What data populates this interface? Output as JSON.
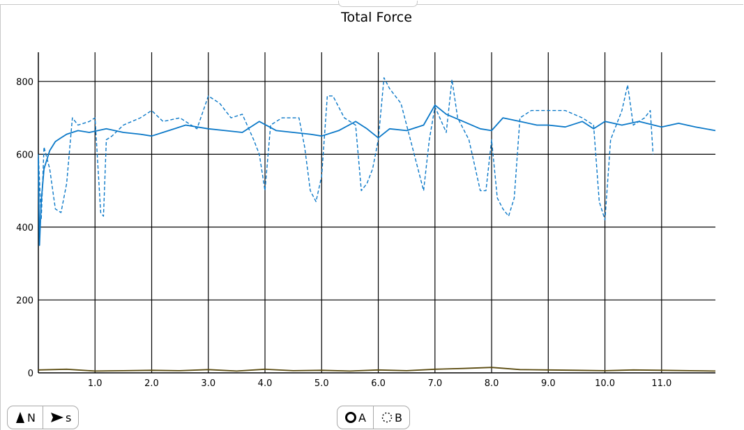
{
  "chart_data": {
    "type": "line",
    "title": "Total Force",
    "xlabel": "",
    "ylabel": "",
    "xlim": [
      0,
      11.95
    ],
    "ylim": [
      0,
      880
    ],
    "x_ticks": [
      1.0,
      2.0,
      3.0,
      4.0,
      5.0,
      6.0,
      7.0,
      8.0,
      9.0,
      10.0,
      11.0
    ],
    "x_tick_labels": [
      "1.0",
      "2.0",
      "3.0",
      "4.0",
      "5.0",
      "6.0",
      "7.0",
      "8.0",
      "9.0",
      "10.0",
      "11.0"
    ],
    "y_ticks": [
      0,
      200,
      400,
      600,
      800
    ],
    "y_tick_labels": [
      "0",
      "200",
      "400",
      "600",
      "800"
    ],
    "grid": true,
    "series": [
      {
        "color": "#0a78c8",
        "style": "solid",
        "x": [
          0,
          0.02,
          0.05,
          0.1,
          0.2,
          0.3,
          0.4,
          0.5,
          0.7,
          0.9,
          1.2,
          1.5,
          1.8,
          2.0,
          2.3,
          2.6,
          3.0,
          3.3,
          3.6,
          3.9,
          4.2,
          4.5,
          4.8,
          5.0,
          5.3,
          5.6,
          5.8,
          6.0,
          6.2,
          6.5,
          6.8,
          7.0,
          7.2,
          7.5,
          7.8,
          8.0,
          8.2,
          8.5,
          8.8,
          9.0,
          9.3,
          9.6,
          9.8,
          10.0,
          10.3,
          10.6,
          11.0,
          11.3,
          11.6,
          11.95
        ],
        "y": [
          590,
          350,
          470,
          560,
          610,
          635,
          645,
          655,
          665,
          660,
          670,
          660,
          655,
          650,
          665,
          680,
          670,
          665,
          660,
          690,
          665,
          660,
          655,
          650,
          665,
          690,
          670,
          645,
          670,
          665,
          680,
          735,
          710,
          690,
          670,
          665,
          700,
          690,
          680,
          680,
          675,
          690,
          670,
          690,
          680,
          690,
          675,
          685,
          675,
          665
        ]
      },
      {
        "color": "#0a78c8",
        "style": "dashed",
        "x": [
          0,
          0.05,
          0.1,
          0.2,
          0.3,
          0.4,
          0.5,
          0.6,
          0.7,
          0.9,
          1.0,
          1.1,
          1.15,
          1.2,
          1.3,
          1.5,
          1.8,
          2.0,
          2.2,
          2.5,
          2.8,
          3.0,
          3.2,
          3.4,
          3.6,
          3.8,
          3.9,
          4.0,
          4.1,
          4.3,
          4.6,
          4.7,
          4.8,
          4.9,
          5.0,
          5.1,
          5.2,
          5.4,
          5.6,
          5.7,
          5.8,
          5.9,
          6.0,
          6.1,
          6.2,
          6.4,
          6.6,
          6.8,
          6.9,
          7.0,
          7.2,
          7.3,
          7.4,
          7.6,
          7.8,
          7.9,
          8.0,
          8.1,
          8.2,
          8.3,
          8.4,
          8.5,
          8.7,
          9.0,
          9.3,
          9.6,
          9.8,
          9.9,
          10.0,
          10.1,
          10.3,
          10.4,
          10.5,
          10.7,
          10.8,
          10.85
        ],
        "y": [
          600,
          420,
          620,
          560,
          450,
          440,
          520,
          700,
          680,
          690,
          700,
          440,
          430,
          640,
          650,
          680,
          700,
          720,
          690,
          700,
          670,
          760,
          740,
          700,
          710,
          640,
          600,
          500,
          680,
          700,
          700,
          620,
          500,
          470,
          540,
          760,
          760,
          700,
          680,
          500,
          520,
          560,
          640,
          810,
          780,
          740,
          620,
          500,
          640,
          730,
          660,
          805,
          700,
          640,
          500,
          500,
          640,
          480,
          450,
          430,
          480,
          700,
          720,
          720,
          720,
          700,
          680,
          470,
          420,
          640,
          720,
          790,
          680,
          700,
          720,
          600
        ]
      },
      {
        "color": "#5a4a0e",
        "style": "solid",
        "x": [
          0,
          0.5,
          1.0,
          1.5,
          2.0,
          2.5,
          3.0,
          3.5,
          4.0,
          4.5,
          5.0,
          5.5,
          6.0,
          6.5,
          7.0,
          7.5,
          8.0,
          8.5,
          9.0,
          9.5,
          10.0,
          10.5,
          11.0,
          11.5,
          11.95
        ],
        "y": [
          8,
          10,
          5,
          6,
          7,
          6,
          9,
          5,
          10,
          6,
          7,
          5,
          8,
          6,
          10,
          12,
          15,
          9,
          8,
          7,
          6,
          8,
          7,
          6,
          5
        ]
      }
    ]
  },
  "controls": {
    "left": [
      {
        "icon": "force-n-icon",
        "label": "N"
      },
      {
        "icon": "play-s-icon",
        "label": "s"
      }
    ],
    "center": [
      {
        "icon": "circle-a-icon",
        "label": "A"
      },
      {
        "icon": "dotted-circle-b-icon",
        "label": "B"
      }
    ]
  }
}
